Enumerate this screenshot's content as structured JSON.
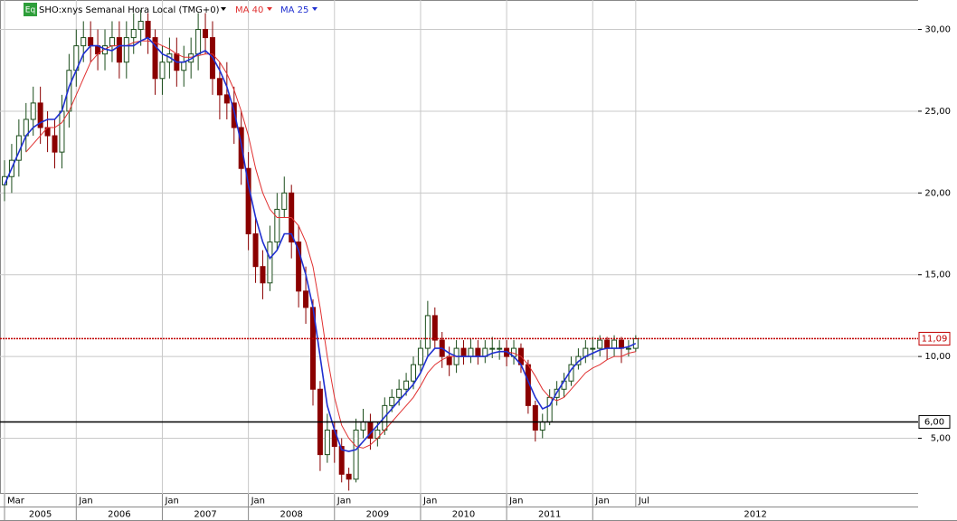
{
  "chart_data": {
    "type": "candlestick",
    "badge": "Eq",
    "title": "SHO:xnys Semanal Hora Local (TMG+0)",
    "x": [
      "2005-03",
      "2005-04",
      "2005-05",
      "2005-06",
      "2005-07",
      "2005-08",
      "2005-09",
      "2005-10",
      "2005-11",
      "2005-12",
      "2006-01",
      "2006-02",
      "2006-03",
      "2006-04",
      "2006-05",
      "2006-06",
      "2006-07",
      "2006-08",
      "2006-09",
      "2006-10",
      "2006-11",
      "2006-12",
      "2007-01",
      "2007-02",
      "2007-03",
      "2007-04",
      "2007-05",
      "2007-06",
      "2007-07",
      "2007-08",
      "2007-09",
      "2007-10",
      "2007-11",
      "2007-12",
      "2008-01",
      "2008-02",
      "2008-03",
      "2008-04",
      "2008-05",
      "2008-06",
      "2008-07",
      "2008-08",
      "2008-09",
      "2008-10",
      "2008-11",
      "2008-12",
      "2009-01",
      "2009-02",
      "2009-03",
      "2009-04",
      "2009-05",
      "2009-06",
      "2009-07",
      "2009-08",
      "2009-09",
      "2009-10",
      "2009-11",
      "2009-12",
      "2010-01",
      "2010-02",
      "2010-03",
      "2010-04",
      "2010-05",
      "2010-06",
      "2010-07",
      "2010-08",
      "2010-09",
      "2010-10",
      "2010-11",
      "2010-12",
      "2011-01",
      "2011-02",
      "2011-03",
      "2011-04",
      "2011-05",
      "2011-06",
      "2011-07",
      "2011-08",
      "2011-09",
      "2011-10",
      "2011-11",
      "2011-12",
      "2012-01",
      "2012-02",
      "2012-03",
      "2012-04",
      "2012-05",
      "2012-06",
      "2012-07"
    ],
    "open": [
      20.5,
      21,
      22,
      23.5,
      24.5,
      25.5,
      24,
      23.5,
      22.5,
      25,
      27.5,
      29,
      29.5,
      29,
      28.5,
      29,
      29.5,
      28,
      29.5,
      30,
      30.5,
      29.5,
      27,
      28,
      28.5,
      27.5,
      28,
      28.5,
      30,
      29.5,
      27,
      26,
      25.5,
      24,
      21.5,
      17.5,
      15.5,
      14.5,
      17,
      19,
      20,
      17,
      14,
      13,
      8,
      4,
      5.5,
      4.5,
      2.8,
      2.5,
      5.5,
      6,
      5,
      5.5,
      7,
      7.5,
      8,
      8.5,
      9.5,
      10.5,
      12.5,
      11,
      10,
      9.5,
      10.5,
      10,
      10.5,
      10,
      10.5,
      10.5,
      10.5,
      10,
      10.5,
      9.5,
      7,
      5.5,
      6,
      7.5,
      8,
      8.5,
      9.5,
      10,
      10.5,
      10.5,
      11,
      10.5,
      11,
      10.5,
      10.5
    ],
    "high": [
      22,
      23,
      24.5,
      25.5,
      26.5,
      26.5,
      25,
      24.5,
      26,
      28.5,
      30,
      30.5,
      30.5,
      30,
      30,
      30.5,
      30.5,
      30.5,
      31,
      31.2,
      31,
      30,
      29,
      29.5,
      29.5,
      29,
      29.5,
      31,
      31,
      30.5,
      28,
      28,
      26.5,
      25,
      22.5,
      18.5,
      16.5,
      18,
      20,
      21,
      20.5,
      18,
      15.5,
      13.5,
      8.5,
      6.5,
      6,
      5,
      3.2,
      6.2,
      6.8,
      6.5,
      6,
      7.5,
      8,
      8.6,
      9,
      10,
      11,
      13.4,
      13,
      11.5,
      10.6,
      11,
      11,
      11.1,
      11,
      11,
      11.2,
      11,
      11,
      11,
      10.8,
      9.8,
      7.3,
      6.5,
      8,
      8.5,
      9,
      10,
      10.5,
      11,
      11.2,
      11.3,
      11.2,
      11.3,
      11.2,
      11,
      11.3
    ],
    "low": [
      19.5,
      20,
      21,
      22.5,
      23.5,
      23,
      22.5,
      21.5,
      21.5,
      24,
      26.5,
      28,
      28,
      27.5,
      27.5,
      28,
      27,
      27,
      28.5,
      29,
      28.5,
      26,
      26,
      27,
      26.5,
      26.5,
      27,
      27.5,
      28.5,
      26,
      24.5,
      24.5,
      23,
      20.5,
      16.5,
      14.5,
      13.5,
      14,
      16.5,
      18.5,
      16,
      13,
      12,
      7,
      3,
      3.5,
      3.5,
      2.3,
      1.8,
      2.3,
      5,
      4.3,
      4.5,
      5.2,
      6.6,
      7,
      7.6,
      8,
      9,
      10,
      10.5,
      9.3,
      8.8,
      9,
      9.5,
      9.6,
      9.5,
      9.6,
      9.9,
      9.8,
      9.4,
      9.5,
      9,
      6.5,
      4.8,
      5,
      5.8,
      7,
      7.5,
      8.2,
      9.2,
      9.6,
      9.8,
      10,
      9.8,
      10,
      9.6,
      10,
      10.3
    ],
    "close": [
      21,
      22,
      23.5,
      24.5,
      25.5,
      24,
      23.5,
      22.5,
      25,
      27.5,
      29,
      29.5,
      29,
      28.5,
      29,
      29.5,
      28,
      29.5,
      30,
      30.5,
      29.5,
      27,
      28,
      28.5,
      27.5,
      28,
      28.5,
      30,
      29.5,
      27,
      26,
      25.5,
      24,
      21.5,
      17.5,
      15.5,
      14.5,
      17,
      19,
      20,
      17,
      14,
      13,
      8,
      4,
      5.5,
      4.5,
      2.8,
      2.5,
      5.5,
      6,
      5,
      5.5,
      7,
      7.5,
      8,
      8.5,
      9.5,
      10.5,
      12.5,
      11,
      10,
      9.5,
      10.5,
      10,
      10.5,
      10,
      10.5,
      10.5,
      10.5,
      10,
      10.5,
      9.5,
      7,
      5.5,
      6,
      7.5,
      8,
      8.5,
      9.5,
      10,
      10.5,
      10.5,
      11,
      10.5,
      11,
      10.5,
      10.5,
      11.09
    ],
    "up_color": "#1b4d1b",
    "down_color": "#8b0000",
    "series": [
      {
        "name": "MA 40",
        "color": "#e03030",
        "values": [
          null,
          null,
          null,
          22.5,
          23,
          23.5,
          24,
          24,
          24.3,
          25,
          26,
          27,
          28,
          28.5,
          28.8,
          29,
          29,
          29,
          29.2,
          29.3,
          29.3,
          29.2,
          29,
          28.8,
          28.5,
          28.3,
          28.3,
          28.4,
          28.5,
          28.5,
          28,
          27.3,
          26.3,
          25,
          23.5,
          21.5,
          20,
          19,
          18.5,
          18.5,
          18.5,
          18,
          17,
          15.5,
          13,
          10,
          7.5,
          5.8,
          5,
          4.5,
          4.4,
          4.6,
          5,
          5.5,
          6,
          6.5,
          7,
          7.5,
          8.2,
          9,
          9.5,
          9.8,
          10,
          10,
          10,
          10,
          10,
          10,
          10.2,
          10.3,
          10.3,
          10.2,
          10,
          9.5,
          8.8,
          8,
          7.5,
          7.3,
          7.5,
          8,
          8.5,
          9,
          9.3,
          9.5,
          9.8,
          10,
          10,
          10.2,
          10.3
        ]
      },
      {
        "name": "MA 25",
        "color": "#1f2fd0",
        "values": [
          20.5,
          21.5,
          22.5,
          23.5,
          24,
          24.3,
          24.5,
          24.5,
          25,
          26.5,
          27.5,
          28.5,
          29,
          29,
          28.8,
          28.7,
          29,
          29,
          29,
          29.3,
          29.5,
          29,
          28.5,
          28.3,
          28,
          28,
          28.2,
          28.5,
          28.7,
          28.3,
          27.5,
          26.5,
          25,
          23,
          20.5,
          18.5,
          17,
          16,
          16.5,
          17.5,
          17.5,
          16.5,
          15,
          13,
          10,
          7,
          5.5,
          4.3,
          4.2,
          4.3,
          4.8,
          5.3,
          5.8,
          6.3,
          6.8,
          7.3,
          7.8,
          8.3,
          9,
          10,
          10.5,
          10.5,
          10.2,
          10,
          10,
          10,
          10,
          10,
          10.2,
          10.3,
          10.3,
          10,
          9.5,
          8.5,
          7.5,
          6.8,
          7,
          7.8,
          8.5,
          9.2,
          9.7,
          10,
          10.2,
          10.4,
          10.5,
          10.5,
          10.5,
          10.6,
          10.8
        ]
      }
    ],
    "reference_lines": [
      {
        "value": 11.09,
        "label": "11,09",
        "color": "#c00000"
      },
      {
        "value": 6,
        "label": "6,00",
        "color": "#000000"
      }
    ],
    "ylim": [
      1.6,
      31.8
    ],
    "yticks": [
      {
        "value": 5,
        "label": "5,00"
      },
      {
        "value": 10,
        "label": "10,00"
      },
      {
        "value": 15,
        "label": "15,00"
      },
      {
        "value": 20,
        "label": "20,00"
      },
      {
        "value": 25,
        "label": "25,00"
      },
      {
        "value": 30,
        "label": "30,00"
      }
    ],
    "xticks": [
      {
        "value": "2005-03",
        "label": "Mar"
      },
      {
        "value": "2006-01",
        "label": "Jan"
      },
      {
        "value": "2007-01",
        "label": "Jan"
      },
      {
        "value": "2008-01",
        "label": "Jan"
      },
      {
        "value": "2009-01",
        "label": "Jan"
      },
      {
        "value": "2010-01",
        "label": "Jan"
      },
      {
        "value": "2011-01",
        "label": "Jan"
      },
      {
        "value": "2012-01",
        "label": "Jan"
      },
      {
        "value": "2012-07",
        "label": "Jul"
      }
    ],
    "year_ticks": [
      {
        "value": "2005-03",
        "label": "2005"
      },
      {
        "value": "2006-01",
        "label": "2006"
      },
      {
        "value": "2007-01",
        "label": "2007"
      },
      {
        "value": "2008-01",
        "label": "2008"
      },
      {
        "value": "2009-01",
        "label": "2009"
      },
      {
        "value": "2010-01",
        "label": "2010"
      },
      {
        "value": "2011-01",
        "label": "2011"
      },
      {
        "value": "2012-01",
        "label": "2012"
      }
    ],
    "grid": true
  }
}
